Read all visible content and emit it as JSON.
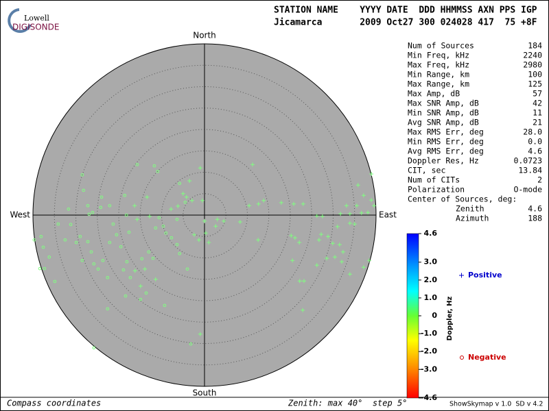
{
  "logo": {
    "top": "Lowell",
    "bottom": "DIGISONDE"
  },
  "header": {
    "line1": "STATION NAME    YYYY DATE  DDD HHMMSS AXN PPS IGP",
    "line2": "Jicamarca       2009 Oct27 300 024028 417  75 +8F"
  },
  "stats": {
    "rows": [
      [
        "Num of Sources",
        "184"
      ],
      [
        "Min Freq, kHz",
        "2240"
      ],
      [
        "Max Freq, kHz",
        "2980"
      ],
      [
        "Min Range, km",
        "100"
      ],
      [
        "Max Range, km",
        "125"
      ],
      [
        "Max Amp, dB",
        "57"
      ],
      [
        "Max SNR Amp, dB",
        "42"
      ],
      [
        "Min SNR Amp, dB",
        "11"
      ],
      [
        "Avg SNR Amp, dB",
        "21"
      ],
      [
        "Max RMS Err, deg",
        "28.0"
      ],
      [
        "Min RMS Err, deg",
        "0.0"
      ],
      [
        "Avg RMS Err, deg",
        "4.6"
      ],
      [
        "Doppler Res, Hz",
        "0.0723"
      ],
      [
        "CIT, sec",
        "13.84"
      ],
      [
        "Num of CITs",
        "2"
      ],
      [
        "Polarization",
        "O-mode"
      ]
    ],
    "center_title": "Center of Sources, deg:",
    "center_rows": [
      [
        "Zenith",
        "4.6"
      ],
      [
        "Azimuth",
        "188"
      ]
    ]
  },
  "footer": {
    "left": "Compass coordinates",
    "middle": "Zenith: max 40°  step 5°",
    "right": "ShowSkymap v 1.0  SD v 4.2"
  },
  "colorbar": {
    "label": "Doppler, Hz",
    "lim": [
      -4.6,
      4.6
    ],
    "ticks": [
      4.6,
      {
        "value": 3.0,
        "label": "3.0"
      },
      {
        "value": 2.0,
        "label": "2.0"
      },
      {
        "value": 1.0,
        "label": "1.0"
      },
      0,
      {
        "value": -1.0,
        "label": "-1.0"
      },
      {
        "value": -2.0,
        "label": "-2.0"
      },
      {
        "value": -3.0,
        "label": "-3.0"
      },
      -4.6
    ]
  },
  "chart_data": {
    "type": "skymap",
    "directions": {
      "north": "North",
      "south": "South",
      "east": "East",
      "west": "West"
    },
    "rlim": [
      0,
      40
    ],
    "rticks": [
      5,
      10,
      15,
      20,
      25,
      30,
      35,
      40
    ],
    "series": [
      {
        "name": "Positive",
        "marker": "plus",
        "color": "#80ff80",
        "legend_color": "#0000cc",
        "x": [
          -1.0,
          11.2,
          38.9,
          35.8,
          37.1,
          38.9,
          39.5,
          35.5,
          33.1,
          31.7,
          33.9,
          36.6,
          38.1,
          35.0,
          33.9,
          31.0,
          27.2,
          26.7,
          28.8,
          29.9,
          31.5,
          32.3,
          30.4,
          28.5,
          26.2,
          32.0,
          33.9,
          37.1,
          38.4,
          20.2,
          21.1,
          22.1,
          20.5,
          22.2,
          23.2,
          22.9,
          23.0,
          20.8,
          17.9,
          13.8,
          12.6,
          10.4,
          8.3,
          4.5,
          3.0,
          0.0,
          0.3,
          1.0,
          2.6,
          12.5,
          26.2,
          27.5,
          -11.4,
          -14.9,
          -13.9,
          -16.2,
          -16.3,
          -13.4,
          -15.7,
          -12.8,
          -1.0,
          -3.5,
          -0.5,
          -4.2,
          -5.0,
          -6.2,
          -7.8,
          -2.4,
          -1.3,
          -2.9
        ],
        "values": [
          11.0,
          11.8,
          9.6,
          7.0,
          4.6,
          3.5,
          2.2,
          2.2,
          2.2,
          0.3,
          0.3,
          0.5,
          0.6,
          -2.1,
          -1.9,
          -2.7,
          -4.5,
          -5.8,
          -5.0,
          -6.6,
          -6.9,
          -8.6,
          -9.8,
          -10.1,
          -11.7,
          -10.9,
          -13.8,
          -12.2,
          -10.6,
          -4.8,
          -5.3,
          -6.4,
          -10.6,
          -15.4,
          -15.4,
          -22.2,
          2.6,
          2.6,
          2.9,
          3.4,
          2.6,
          2.2,
          -1.6,
          -1.4,
          -1.0,
          -1.4,
          -4.2,
          -6.4,
          -2.6,
          -5.8,
          -0.2,
          -0.3,
          -15.0,
          -16.6,
          -12.6,
          -13.0,
          2.2,
          4.2,
          -1.0,
          -0.3,
          -27.8,
          8.0,
          3.4,
          4.2,
          5.0,
          2.1,
          1.4,
          -4.6,
          -5.8,
          3.4
        ]
      },
      {
        "name": "Negative",
        "marker": "circle",
        "color": "#80ff80",
        "legend_color": "#cc0000",
        "x": [
          -38.1,
          -37.6,
          -36.2,
          -37.3,
          -34.9,
          -34.1,
          -32.5,
          -31.7,
          -31.2,
          -29.9,
          -29.0,
          -28.5,
          -27.2,
          -26.4,
          -25.8,
          -26.9,
          -26.1,
          -28.2,
          -27.2,
          -24.2,
          -24.8,
          -23.7,
          -22.6,
          -22.1,
          -21.3,
          -20.5,
          -19.5,
          -18.9,
          -18.1,
          -17.6,
          -17.3,
          -18.4,
          -22.6,
          -14.9,
          -13.6,
          -13.0,
          -12.0,
          -14.6,
          -11.4,
          -9.6,
          -9.0,
          -7.7,
          -6.4,
          -5.8,
          -4.0,
          -9.3,
          -3.2,
          -25.8,
          -15.7,
          -11.7,
          -10.9,
          -28.5,
          -24.0,
          -22.1,
          -18.6,
          -5.8,
          -4.5,
          -6.4,
          -10.6,
          -18.2,
          -39.7,
          -38.4
        ],
        "values": [
          -5.0,
          -7.5,
          -9.8,
          -12.5,
          -15.5,
          -2.1,
          -5.8,
          1.4,
          -2.2,
          -6.4,
          -5.0,
          -10.6,
          -6.2,
          -8.6,
          -11.4,
          0.2,
          0.6,
          5.8,
          2.2,
          1.8,
          -12.6,
          -10.6,
          -14.6,
          -6.4,
          -2.1,
          -4.6,
          -7.4,
          -12.8,
          -10.9,
          -4.0,
          -14.6,
          -18.9,
          -21.9,
          -19.7,
          -18.2,
          -8.6,
          -10.1,
          -10.2,
          -3.0,
          -2.6,
          -4.2,
          -5.3,
          -6.9,
          -9.0,
          -12.6,
          -21.1,
          -30.1,
          -31.0,
          11.8,
          11.5,
          10.2,
          9.4,
          4.2,
          2.2,
          4.6,
          7.4,
          3.0,
          -1.0,
          -0.6,
          0.0,
          -5.8,
          -12.5
        ]
      }
    ]
  }
}
